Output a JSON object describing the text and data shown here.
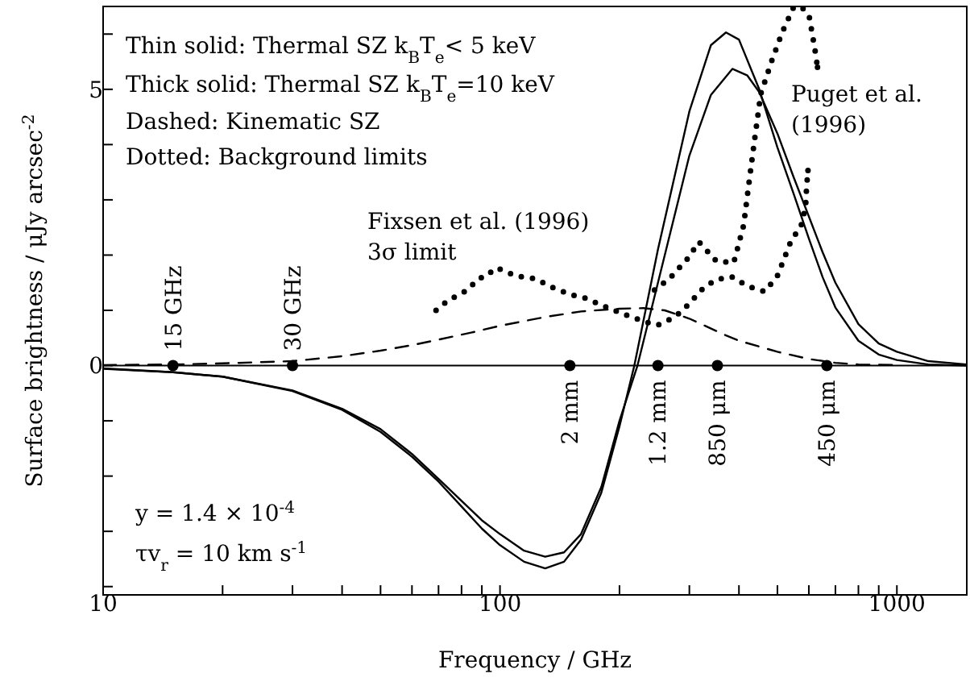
{
  "chart_data": {
    "type": "line",
    "xlabel": "Frequency / GHz",
    "ylabel": "Surface brightness / μJy arcsec$^{-2}$",
    "log": "x",
    "xlim": [
      10,
      1500
    ],
    "xticks": [
      10,
      {
        "value": 20,
        "label": null
      },
      {
        "value": 30,
        "label": null
      },
      {
        "value": 40,
        "label": null
      },
      {
        "value": 50,
        "label": null
      },
      {
        "value": 60,
        "label": null
      },
      {
        "value": 70,
        "label": null
      },
      {
        "value": 80,
        "label": null
      },
      {
        "value": 90,
        "label": null
      },
      100,
      {
        "value": 200,
        "label": null
      },
      {
        "value": 300,
        "label": null
      },
      {
        "value": 400,
        "label": null
      },
      {
        "value": 500,
        "label": null
      },
      {
        "value": 600,
        "label": null
      },
      {
        "value": 700,
        "label": null
      },
      {
        "value": 800,
        "label": null
      },
      {
        "value": 900,
        "label": null
      },
      1000
    ],
    "ylim": [
      -4.15,
      6.5
    ],
    "yticks": [
      {
        "value": -4,
        "label": null
      },
      {
        "value": -3,
        "label": null
      },
      {
        "value": -2,
        "label": null
      },
      {
        "value": -1,
        "label": null
      },
      0,
      {
        "value": 1,
        "label": null
      },
      {
        "value": 2,
        "label": null
      },
      {
        "value": 3,
        "label": null
      },
      {
        "value": 4,
        "label": null
      },
      5,
      {
        "value": 6,
        "label": null
      }
    ],
    "ref_lines": [
      {
        "axis": "y",
        "value": 0,
        "color": "#000000",
        "line_style": "solid"
      }
    ],
    "series": [
      {
        "color": "#000000",
        "line_style": "solid",
        "x": [
          10,
          15,
          20,
          30,
          40,
          50,
          60,
          70,
          80,
          90,
          100,
          115,
          130,
          145,
          160,
          180,
          200,
          218,
          250,
          300,
          340,
          371,
          400,
          450,
          500,
          550,
          600,
          650,
          700,
          800,
          900,
          1000,
          1200,
          1500
        ],
        "values": [
          -0.06,
          -0.12,
          -0.2,
          -0.46,
          -0.8,
          -1.2,
          -1.65,
          -2.1,
          -2.55,
          -2.95,
          -3.25,
          -3.55,
          -3.67,
          -3.55,
          -3.15,
          -2.3,
          -1.1,
          0,
          2.1,
          4.6,
          5.8,
          6.03,
          5.9,
          5.0,
          3.95,
          3.1,
          2.3,
          1.6,
          1.05,
          0.45,
          0.2,
          0.1,
          0.02,
          0
        ]
      },
      {
        "color": "#000000",
        "line_style": "solid",
        "x": [
          10,
          15,
          20,
          30,
          40,
          50,
          60,
          70,
          80,
          90,
          100,
          115,
          130,
          145,
          160,
          180,
          200,
          222,
          250,
          300,
          340,
          385,
          420,
          450,
          500,
          550,
          600,
          650,
          700,
          800,
          900,
          1000,
          1200,
          1500
        ],
        "values": [
          -0.05,
          -0.12,
          -0.2,
          -0.45,
          -0.78,
          -1.15,
          -1.6,
          -2.05,
          -2.45,
          -2.8,
          -3.05,
          -3.35,
          -3.46,
          -3.38,
          -3.05,
          -2.2,
          -1.0,
          0,
          1.5,
          3.8,
          4.9,
          5.37,
          5.25,
          4.95,
          4.2,
          3.4,
          2.7,
          2.05,
          1.5,
          0.75,
          0.4,
          0.25,
          0.08,
          0.02
        ]
      },
      {
        "color": "#000000",
        "line_style": "dashed",
        "x": [
          10,
          15,
          20,
          30,
          40,
          50,
          60,
          70,
          85,
          100,
          130,
          160,
          200,
          230,
          260,
          300,
          370,
          400,
          500,
          600,
          700,
          800,
          1000
        ],
        "values": [
          0.01,
          0.02,
          0.04,
          0.08,
          0.17,
          0.27,
          0.37,
          0.47,
          0.6,
          0.72,
          0.88,
          0.98,
          1.03,
          1.04,
          1.0,
          0.85,
          0.55,
          0.45,
          0.25,
          0.12,
          0.05,
          0.02,
          0.01
        ]
      },
      {
        "color": "#000000",
        "line_style": "dotted",
        "x": [
          69,
          74,
          82,
          89,
          91,
          98,
          110,
          123,
          135,
          150,
          164,
          182,
          202,
          226,
          248,
          251,
          276,
          298,
          322,
          348,
          383,
          420,
          464,
          499,
          540,
          574,
          589,
          592,
          597
        ],
        "values": [
          1.0,
          1.18,
          1.35,
          1.59,
          1.59,
          1.77,
          1.62,
          1.57,
          1.42,
          1.29,
          1.22,
          1.08,
          0.95,
          0.82,
          0.73,
          0.74,
          0.88,
          1.1,
          1.37,
          1.55,
          1.61,
          1.44,
          1.34,
          1.61,
          2.24,
          2.54,
          2.88,
          3.22,
          3.53
        ]
      },
      {
        "color": "#000000",
        "line_style": "dotted",
        "x": [
          245,
          267,
          298,
          317,
          351,
          388,
          411,
          424,
          438,
          454,
          483,
          514,
          548,
          574,
          601,
          621,
          631
        ],
        "values": [
          1.37,
          1.57,
          1.95,
          2.24,
          1.89,
          1.86,
          2.54,
          3.31,
          4.09,
          4.92,
          5.5,
          6.03,
          6.47,
          6.5,
          6.33,
          5.74,
          5.4
        ]
      },
      {
        "type": "scatter",
        "color": "#000000",
        "marker": "circle",
        "x": [
          15,
          30,
          150,
          250,
          353,
          666
        ],
        "values": [
          0,
          0,
          0,
          0,
          0,
          0
        ]
      }
    ],
    "annotations": [
      "Thin solid: Thermal SZ k$_{B}$T$_{e}$< 5 keV",
      "Thick solid: Thermal SZ k$_{B}$T$_{e}$=10 keV",
      "Dashed: Kinematic SZ",
      "Dotted: Background limits",
      "Fixsen et al. (1996)\n3σ limit",
      "Puget et al.\n(1996)",
      "y = 1.4 × 10$^{-4}$",
      "τv$_{r}$ = 10 km s$^{-1}$",
      {
        "text": "15 GHz",
        "x": 15,
        "y": 0
      },
      {
        "text": "30 GHz",
        "x": 30,
        "y": 0
      },
      {
        "text": "2 mm",
        "x": 150,
        "y": 0
      },
      {
        "text": "1.2 mm",
        "x": 250,
        "y": 0
      },
      {
        "text": "850 μm",
        "x": 353,
        "y": 0
      },
      {
        "text": "450 μm",
        "x": 666,
        "y": 0
      }
    ]
  }
}
